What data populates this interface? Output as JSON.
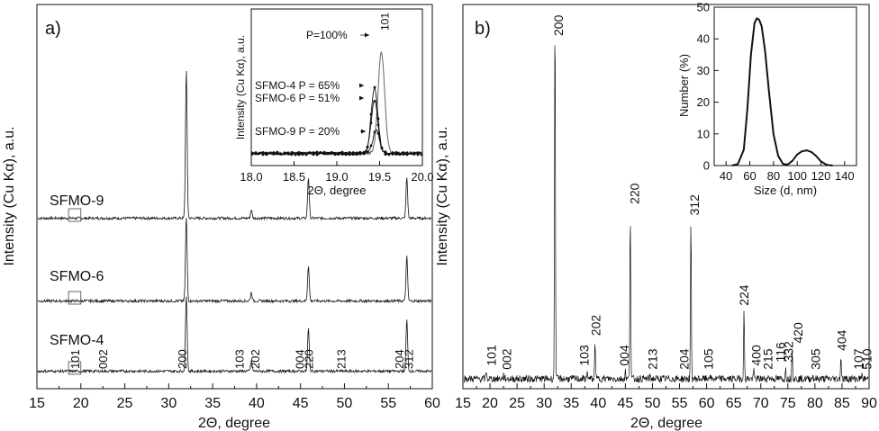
{
  "chart_data": [
    {
      "type": "line",
      "panel_label": "a)",
      "xlabel": "2Θ, degree",
      "ylabel": "Intensity (Cu Kα), a.u.",
      "xlim": [
        15,
        60
      ],
      "xticks": [
        15,
        20,
        25,
        30,
        35,
        40,
        45,
        50,
        55,
        60
      ],
      "series": [
        {
          "name": "SFMO-9",
          "peaks": [
            {
              "x": 32.0,
              "h": 0.87
            },
            {
              "x": 39.4,
              "h": 0.05
            },
            {
              "x": 45.9,
              "h": 0.24
            },
            {
              "x": 57.1,
              "h": 0.24
            }
          ]
        },
        {
          "name": "SFMO-6",
          "peaks": [
            {
              "x": 32.0,
              "h": 0.49
            },
            {
              "x": 39.4,
              "h": 0.05
            },
            {
              "x": 45.9,
              "h": 0.21
            },
            {
              "x": 57.1,
              "h": 0.26
            }
          ]
        },
        {
          "name": "SFMO-4",
          "peaks": [
            {
              "x": 32.0,
              "h": 0.45
            },
            {
              "x": 39.4,
              "h": 0.06
            },
            {
              "x": 45.9,
              "h": 0.25
            },
            {
              "x": 57.1,
              "h": 0.3
            }
          ]
        }
      ],
      "reflections": [
        {
          "label": "101",
          "x": 19.3
        },
        {
          "label": "002",
          "x": 22.5
        },
        {
          "label": "200",
          "x": 31.5
        },
        {
          "label": "103",
          "x": 38.0
        },
        {
          "label": "202",
          "x": 39.8
        },
        {
          "label": "004",
          "x": 44.9
        },
        {
          "label": "220",
          "x": 45.9
        },
        {
          "label": "213",
          "x": 49.6
        },
        {
          "label": "204",
          "x": 56.2
        },
        {
          "label": "312",
          "x": 57.3
        }
      ],
      "inset": {
        "xlabel": "2Θ, degree",
        "ylabel": "Intensity (Cu Kα), a.u.",
        "xlim": [
          18.0,
          20.0
        ],
        "xticks": [
          "18.0",
          "18.5",
          "19.0",
          "19.5",
          "20.0"
        ],
        "peak_label": "101",
        "annotations": [
          {
            "text": "P=100%"
          },
          {
            "text": "SFMO-4 P = 65%"
          },
          {
            "text": "SFMO-6 P = 51%"
          },
          {
            "text": "SFMO-9 P = 20%"
          }
        ],
        "series": [
          {
            "P": 100,
            "center": 19.52,
            "height": 0.8
          },
          {
            "P": 65,
            "center": 19.44,
            "height": 0.52
          },
          {
            "P": 51,
            "center": 19.44,
            "height": 0.42
          },
          {
            "P": 20,
            "center": 19.46,
            "height": 0.18
          }
        ]
      }
    },
    {
      "type": "line",
      "panel_label": "b)",
      "xlabel": "2Θ, degree",
      "ylabel": "Intensity (Cu Kα), a.u.",
      "xlim": [
        15,
        90
      ],
      "xticks": [
        15,
        20,
        25,
        30,
        35,
        40,
        45,
        50,
        55,
        60,
        65,
        70,
        75,
        80,
        85,
        90
      ],
      "peaks": [
        {
          "x": 19.3,
          "h": 0.02
        },
        {
          "x": 22.5,
          "h": 0.01
        },
        {
          "x": 32.0,
          "h": 1.0
        },
        {
          "x": 38.0,
          "h": 0.02
        },
        {
          "x": 39.4,
          "h": 0.1
        },
        {
          "x": 45.0,
          "h": 0.02
        },
        {
          "x": 45.9,
          "h": 0.45
        },
        {
          "x": 49.6,
          "h": 0.01
        },
        {
          "x": 57.1,
          "h": 0.42
        },
        {
          "x": 60.5,
          "h": 0.01
        },
        {
          "x": 66.9,
          "h": 0.18
        },
        {
          "x": 68.7,
          "h": 0.02
        },
        {
          "x": 71.5,
          "h": 0.01
        },
        {
          "x": 74.6,
          "h": 0.03
        },
        {
          "x": 75.8,
          "h": 0.08
        },
        {
          "x": 79.6,
          "h": 0.01
        },
        {
          "x": 84.8,
          "h": 0.06
        },
        {
          "x": 88.6,
          "h": 0.01
        }
      ],
      "reflections": [
        {
          "label": "101",
          "x": 20.2
        },
        {
          "label": "002",
          "x": 23.1
        },
        {
          "label": "200",
          "x": 32.6
        },
        {
          "label": "103",
          "x": 37.4
        },
        {
          "label": "202",
          "x": 39.5
        },
        {
          "label": "004",
          "x": 44.8
        },
        {
          "label": "220",
          "x": 46.7
        },
        {
          "label": "213",
          "x": 50.0
        },
        {
          "label": "204",
          "x": 55.8
        },
        {
          "label": "312",
          "x": 57.7
        },
        {
          "label": "105",
          "x": 60.3
        },
        {
          "label": "224",
          "x": 66.9
        },
        {
          "label": "400",
          "x": 69.1
        },
        {
          "label": "215",
          "x": 71.3
        },
        {
          "label": "116",
          "x": 73.6
        },
        {
          "label": "332",
          "x": 75.1
        },
        {
          "label": "420",
          "x": 76.9
        },
        {
          "label": "305",
          "x": 80.1
        },
        {
          "label": "404",
          "x": 84.9
        },
        {
          "label": "107",
          "x": 88.0
        },
        {
          "label": "510",
          "x": 89.6
        }
      ],
      "inset": {
        "xlabel": "Size (d, nm)",
        "ylabel": "Number (%)",
        "xlim": [
          30,
          150
        ],
        "ylim": [
          0,
          50
        ],
        "xticks": [
          40,
          60,
          80,
          100,
          120,
          140
        ],
        "yticks": [
          0,
          10,
          20,
          30,
          40,
          50
        ],
        "x": [
          45,
          50,
          55,
          58,
          61,
          64,
          66,
          68,
          70,
          73,
          76,
          80,
          84,
          88,
          92,
          96,
          100,
          104,
          108,
          112,
          116,
          120,
          125,
          130
        ],
        "y": [
          0,
          0.5,
          5,
          18,
          35,
          45,
          46.5,
          46,
          44,
          36,
          24,
          10,
          3,
          0.5,
          0.3,
          1.5,
          3.5,
          4.5,
          4.8,
          4.3,
          3,
          1.3,
          0.2,
          0
        ]
      }
    }
  ]
}
